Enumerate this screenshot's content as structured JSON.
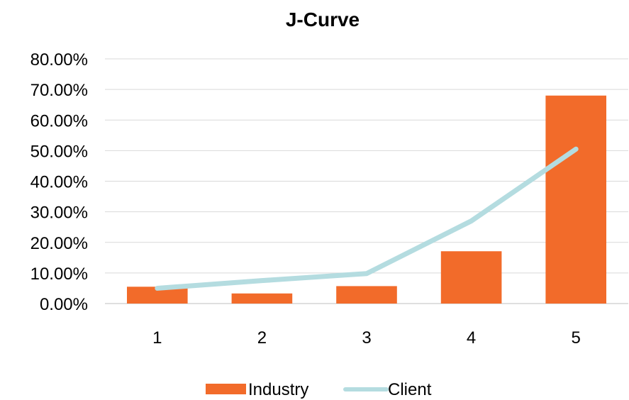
{
  "chart_data": {
    "type": "bar",
    "title": "J-Curve",
    "xlabel": "",
    "ylabel": "",
    "categories": [
      "1",
      "2",
      "3",
      "4",
      "5"
    ],
    "ylim": [
      0,
      0.8
    ],
    "yticks": [
      0,
      0.1,
      0.2,
      0.3,
      0.4,
      0.5,
      0.6,
      0.7,
      0.8
    ],
    "ytick_labels": [
      "0.00%",
      "10.00%",
      "20.00%",
      "30.00%",
      "40.00%",
      "50.00%",
      "60.00%",
      "70.00%",
      "80.00%"
    ],
    "grid": true,
    "legend_position": "bottom",
    "series": [
      {
        "name": "Industry",
        "kind": "bar",
        "color": "#f26b2a",
        "values": [
          0.055,
          0.033,
          0.057,
          0.171,
          0.68
        ]
      },
      {
        "name": "Client",
        "kind": "line",
        "color": "#b4dce0",
        "values": [
          0.05,
          0.075,
          0.098,
          0.27,
          0.505
        ]
      }
    ]
  }
}
